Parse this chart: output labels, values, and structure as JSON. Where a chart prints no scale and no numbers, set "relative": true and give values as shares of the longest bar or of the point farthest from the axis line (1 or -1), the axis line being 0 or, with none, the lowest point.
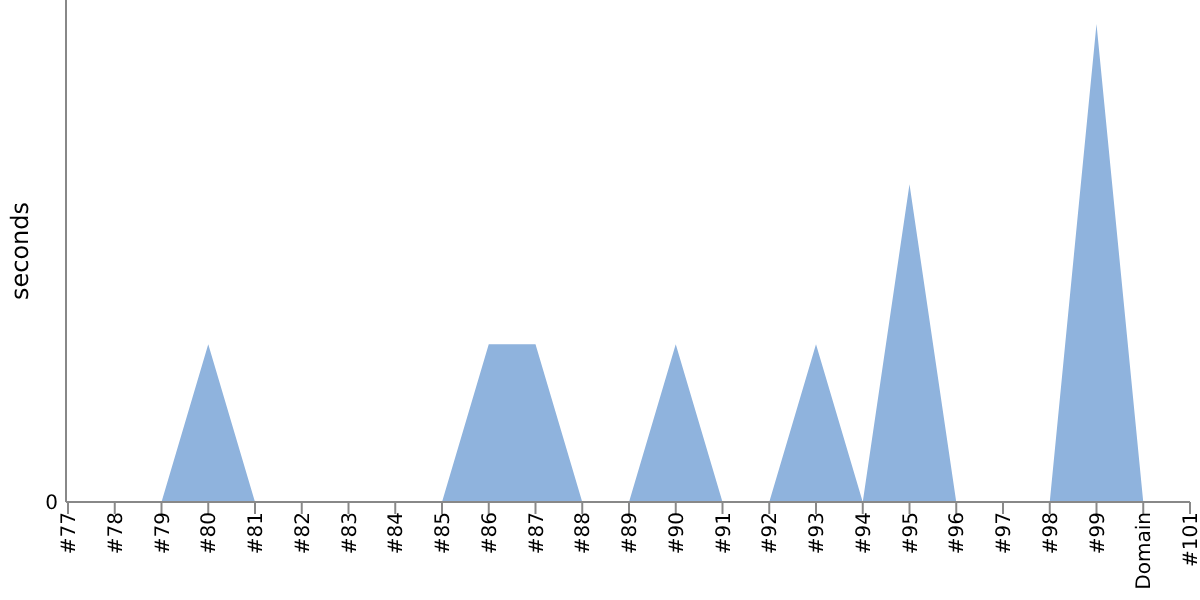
{
  "chart_data": {
    "type": "area",
    "ylabel": "seconds",
    "relative": true,
    "categories": [
      "#77",
      "#78",
      "#79",
      "#80",
      "#81",
      "#82",
      "#83",
      "#84",
      "#85",
      "#86",
      "#87",
      "#88",
      "#89",
      "#90",
      "#91",
      "#92",
      "#93",
      "#94",
      "#95",
      "#96",
      "#97",
      "#98",
      "#99",
      "Domain",
      "#101"
    ],
    "series": [
      {
        "color": "#8fb3dd",
        "values": [
          0,
          0,
          0,
          0.33,
          0,
          0,
          0,
          0,
          0,
          0.33,
          0.33,
          0,
          0,
          0.33,
          0,
          0,
          0.33,
          0,
          0.665,
          0,
          0,
          0,
          1,
          0,
          0
        ]
      }
    ],
    "annotations": [
      "0"
    ]
  }
}
